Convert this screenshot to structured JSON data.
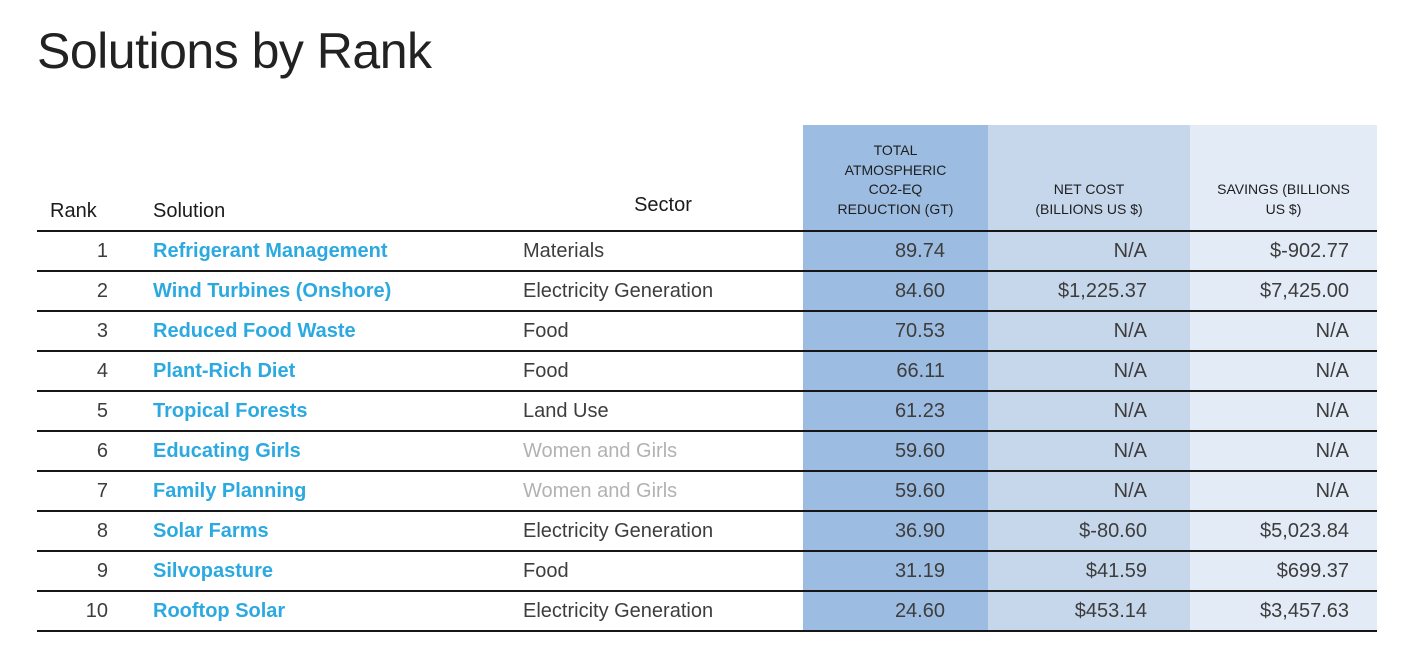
{
  "title": "Solutions by Rank",
  "colors": {
    "solution_link": "#2BA9E0",
    "co2_column_bg": "#9CBCE1",
    "net_cost_column_bg": "#C6D7EC",
    "savings_column_bg": "#E3EBF6",
    "muted_sector_text": "#B2B2B2",
    "body_text": "#3D3D3D",
    "row_line": "#161616"
  },
  "table": {
    "headers": {
      "rank": "Rank",
      "solution": "Solution",
      "sector": "Sector",
      "co2": "TOTAL\nATMOSPHERIC\nCO2-EQ\nREDUCTION (GT)",
      "net_cost": "NET COST\n(BILLIONS US $)",
      "savings": "SAVINGS (BILLIONS\nUS $)"
    }
  },
  "chart_data": {
    "type": "table",
    "title": "Solutions by Rank",
    "columns": [
      "Rank",
      "Solution",
      "Sector",
      "Total Atmospheric CO2-EQ Reduction (GT)",
      "Net Cost (Billions US $)",
      "Savings (Billions US $)"
    ],
    "rows": [
      {
        "rank": "1",
        "solution": "Refrigerant Management",
        "sector": "Materials",
        "co2": "89.74",
        "net_cost": "N/A",
        "savings": "$-902.77"
      },
      {
        "rank": "2",
        "solution": "Wind Turbines (Onshore)",
        "sector": "Electricity Generation",
        "co2": "84.60",
        "net_cost": "$1,225.37",
        "savings": "$7,425.00"
      },
      {
        "rank": "3",
        "solution": "Reduced Food Waste",
        "sector": "Food",
        "co2": "70.53",
        "net_cost": "N/A",
        "savings": "N/A"
      },
      {
        "rank": "4",
        "solution": "Plant-Rich Diet",
        "sector": "Food",
        "co2": "66.11",
        "net_cost": "N/A",
        "savings": "N/A"
      },
      {
        "rank": "5",
        "solution": "Tropical Forests",
        "sector": "Land Use",
        "co2": "61.23",
        "net_cost": "N/A",
        "savings": "N/A"
      },
      {
        "rank": "6",
        "solution": "Educating Girls",
        "sector": "Women and Girls",
        "co2": "59.60",
        "net_cost": "N/A",
        "savings": "N/A"
      },
      {
        "rank": "7",
        "solution": "Family Planning",
        "sector": "Women and Girls",
        "co2": "59.60",
        "net_cost": "N/A",
        "savings": "N/A"
      },
      {
        "rank": "8",
        "solution": "Solar Farms",
        "sector": "Electricity Generation",
        "co2": "36.90",
        "net_cost": "$-80.60",
        "savings": "$5,023.84"
      },
      {
        "rank": "9",
        "solution": "Silvopasture",
        "sector": "Food",
        "co2": "31.19",
        "net_cost": "$41.59",
        "savings": "$699.37"
      },
      {
        "rank": "10",
        "solution": "Rooftop Solar",
        "sector": "Electricity Generation",
        "co2": "24.60",
        "net_cost": "$453.14",
        "savings": "$3,457.63"
      }
    ]
  }
}
